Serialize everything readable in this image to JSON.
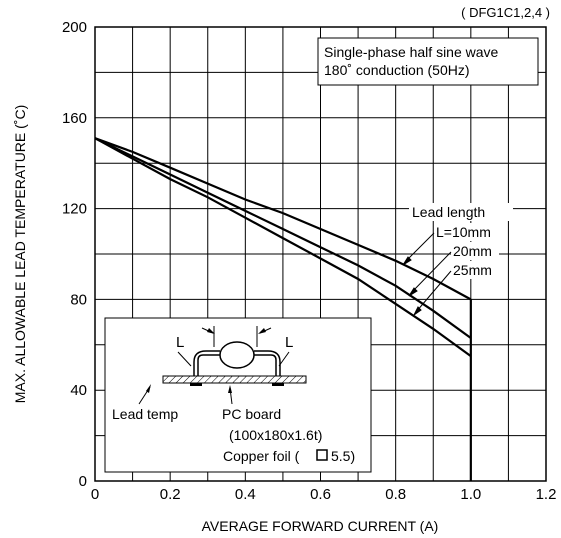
{
  "chart_data": {
    "type": "line",
    "title": "",
    "model_label": "( DFG1C1,2,4 )",
    "xlabel": "AVERAGE FORWARD CURRENT (A)",
    "ylabel": "MAX. ALLOWABLE LEAD TEMPERATURE (˚C)",
    "xlim": [
      0,
      1.2
    ],
    "ylim": [
      0,
      200
    ],
    "x_ticks": [
      "0",
      "0.2",
      "0.4",
      "0.6",
      "0.8",
      "1.0",
      "1.2"
    ],
    "y_ticks": [
      "0",
      "40",
      "80",
      "120",
      "160",
      "200"
    ],
    "grid": true,
    "condition_box": {
      "line1": "Single-phase half sine wave",
      "line2": "180˚ conduction (50Hz)"
    },
    "legend_title": "Lead length",
    "series": [
      {
        "name": "L=10mm",
        "x": [
          0,
          0.1,
          0.2,
          0.3,
          0.4,
          0.5,
          0.6,
          0.7,
          0.8,
          0.9,
          1.0
        ],
        "y": [
          151,
          145,
          138,
          131,
          124,
          118,
          111,
          104,
          97,
          89,
          80
        ]
      },
      {
        "name": "20mm",
        "x": [
          0,
          0.1,
          0.2,
          0.3,
          0.4,
          0.5,
          0.6,
          0.7,
          0.8,
          0.9,
          1.0
        ],
        "y": [
          151,
          143,
          135,
          127,
          119,
          111,
          103,
          95,
          86,
          75,
          63
        ]
      },
      {
        "name": "25mm",
        "x": [
          0,
          0.1,
          0.2,
          0.3,
          0.4,
          0.5,
          0.6,
          0.7,
          0.8,
          0.9,
          1.0
        ],
        "y": [
          151,
          142,
          133,
          125,
          116,
          107,
          98,
          89,
          78,
          67,
          55
        ]
      }
    ],
    "vertical_limit_line": {
      "x": 1.0,
      "y_from": 0,
      "y_to": 80
    },
    "inset": {
      "dimension_label_left": "L",
      "dimension_label_right": "L",
      "lead_temp_label": "Lead temp",
      "pc_board_label": "PC board",
      "pc_board_size": "(100x180x1.6t)",
      "copper_foil_label": "Copper foil (",
      "copper_foil_value": "5.5)"
    }
  }
}
